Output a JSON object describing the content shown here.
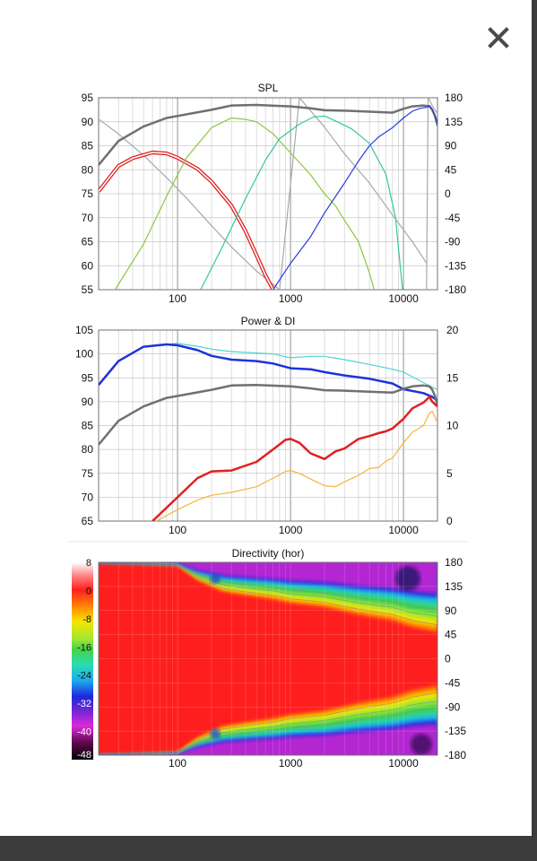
{
  "icons": {
    "close": "close-icon"
  },
  "colors": {
    "panel_bg": "#ffffff",
    "backdrop": "#3c3c3c",
    "grid": "#c8c8c8",
    "grid_major": "#909090",
    "frame": "#707070",
    "gray_curve": "#707070",
    "light_gray_curve": "#a8a8a8",
    "red": "#e02020",
    "lime": "#8cc83c",
    "teal": "#30c8a0",
    "blue_spl": "#2a3cdc",
    "blue_power": "#1e32dc",
    "cyan": "#50d2d2",
    "orange": "#f5b43c"
  },
  "chart_data": [
    {
      "type": "line",
      "title": "SPL",
      "xscale": "log",
      "xlim": [
        20,
        20000
      ],
      "x_ticks": [
        "100",
        "1000",
        "10000"
      ],
      "y_left_ticks": [
        "95",
        "90",
        "85",
        "80",
        "75",
        "70",
        "65",
        "60",
        "55"
      ],
      "y_right_ticks": [
        "180",
        "135",
        "90",
        "45",
        "0",
        "-45",
        "-90",
        "-135",
        "-180"
      ],
      "ylim": [
        55,
        95
      ],
      "y2lim": [
        -180,
        180
      ],
      "series": [
        {
          "color": "#a8a8a8",
          "axis": "right",
          "width": 1.2,
          "x": [
            20,
            30,
            50,
            80,
            120,
            200,
            300,
            500,
            800,
            1200,
            2000,
            3000,
            5000,
            8000,
            12000,
            16000
          ],
          "y": [
            140,
            112,
            72,
            30,
            -8,
            -60,
            -100,
            -145,
            -180,
            180,
            125,
            75,
            20,
            -40,
            -90,
            -130
          ]
        },
        {
          "color": "#a8a8a8",
          "axis": "right",
          "width": 1.2,
          "x": [
            16000,
            16500,
            17000,
            18000,
            20000
          ],
          "y": [
            -180,
            180,
            176,
            165,
            150
          ]
        },
        {
          "color": "#707070",
          "axis": "left",
          "width": 2.5,
          "x": [
            20,
            30,
            50,
            80,
            100,
            200,
            300,
            500,
            800,
            1000,
            1500,
            2000,
            3000,
            5000,
            8000,
            10000,
            12000,
            15000,
            17000,
            18000,
            19000,
            20000
          ],
          "y": [
            81,
            86,
            89,
            90.8,
            91.2,
            92.5,
            93.4,
            93.5,
            93.3,
            93.2,
            92.8,
            92.4,
            92.3,
            92.1,
            91.9,
            92.7,
            93.2,
            93.4,
            93.2,
            92.5,
            91.2,
            89.2
          ]
        },
        {
          "color": "#e02020",
          "axis": "left",
          "width": 1.2,
          "double": true,
          "x": [
            20,
            30,
            40,
            60,
            80,
            100,
            150,
            200,
            300,
            400,
            500,
            600,
            700
          ],
          "y": [
            75.5,
            80.8,
            82.4,
            83.6,
            83.4,
            82.5,
            80.2,
            77.5,
            72.5,
            67.2,
            62.2,
            58,
            55
          ]
        },
        {
          "color": "#8cc83c",
          "axis": "left",
          "width": 1.2,
          "x": [
            28,
            50,
            80,
            120,
            200,
            300,
            400,
            500,
            700,
            1000,
            1500,
            2000,
            2500,
            3000,
            4000,
            5000,
            5500
          ],
          "y": [
            55,
            64.5,
            74.5,
            82.5,
            88.8,
            90.8,
            90.5,
            90,
            87.5,
            83.5,
            79,
            75,
            72.5,
            69.5,
            65,
            58.5,
            55
          ]
        },
        {
          "color": "#30c8a0",
          "axis": "left",
          "width": 1.2,
          "x": [
            160,
            250,
            400,
            600,
            800,
            1200,
            1600,
            2000,
            2600,
            3500,
            5000,
            7000,
            8500,
            9800
          ],
          "y": [
            55,
            64,
            74,
            82,
            86.5,
            89.5,
            91,
            91.2,
            90,
            88.5,
            85.5,
            79,
            70,
            55
          ]
        },
        {
          "color": "#2a3cdc",
          "axis": "left",
          "width": 1.2,
          "x": [
            700,
            1000,
            1500,
            2000,
            3000,
            4000,
            5000,
            6000,
            8000,
            10000,
            12000,
            14000,
            16000,
            17000,
            18000,
            20000
          ],
          "y": [
            55,
            60.5,
            66,
            71,
            77.2,
            81.8,
            85,
            86.8,
            88.8,
            90.8,
            92.2,
            92.8,
            93,
            93.4,
            92.5,
            89.8
          ]
        }
      ]
    },
    {
      "type": "line",
      "title": "Power & DI",
      "xscale": "log",
      "xlim": [
        20,
        20000
      ],
      "x_ticks": [
        "100",
        "1000",
        "10000"
      ],
      "y_left_ticks": [
        "105",
        "100",
        "95",
        "90",
        "85",
        "80",
        "75",
        "70",
        "65"
      ],
      "y_right_ticks": [
        "20",
        "15",
        "10",
        "5",
        "0"
      ],
      "ylim": [
        65,
        105
      ],
      "y2lim": [
        0,
        20
      ],
      "series": [
        {
          "color": "#50d2d2",
          "axis": "left",
          "width": 1.2,
          "x": [
            20,
            30,
            50,
            80,
            100,
            150,
            200,
            300,
            500,
            700,
            1000,
            1500,
            2000,
            3000,
            5000,
            8000,
            10000,
            15000,
            20000
          ],
          "y": [
            93.5,
            98.5,
            101.5,
            102,
            102.2,
            101.6,
            101,
            100.5,
            100.2,
            100,
            99.2,
            99.5,
            99.5,
            98.8,
            97.8,
            96.8,
            96.2,
            94,
            92.5
          ]
        },
        {
          "color": "#1e32dc",
          "axis": "left",
          "width": 2.5,
          "x": [
            20,
            30,
            50,
            80,
            100,
            150,
            200,
            300,
            500,
            700,
            1000,
            1500,
            2000,
            3000,
            5000,
            8000,
            10000,
            15000,
            18000,
            20000
          ],
          "y": [
            93.5,
            98.5,
            101.5,
            102,
            101.8,
            100.8,
            99.6,
            98.8,
            98.5,
            98,
            97,
            96.8,
            96.2,
            95.5,
            94.8,
            93.8,
            92.6,
            91.8,
            91,
            90.2
          ]
        },
        {
          "color": "#707070",
          "axis": "left",
          "width": 2.5,
          "x": [
            20,
            30,
            50,
            80,
            100,
            200,
            300,
            500,
            800,
            1000,
            1500,
            2000,
            3000,
            5000,
            8000,
            10000,
            12000,
            15000,
            17000,
            18000,
            19000,
            20000
          ],
          "y": [
            81,
            86,
            89,
            90.8,
            91.2,
            92.5,
            93.4,
            93.5,
            93.3,
            93.2,
            92.8,
            92.4,
            92.3,
            92.1,
            91.9,
            92.7,
            93.2,
            93.4,
            93.2,
            92.5,
            91.2,
            89.2
          ]
        },
        {
          "color": "#f5b43c",
          "axis": "right",
          "width": 1.2,
          "x": [
            65,
            100,
            150,
            200,
            300,
            500,
            700,
            900,
            1000,
            1200,
            1500,
            2000,
            2500,
            3000,
            4000,
            5000,
            6000,
            7000,
            8000,
            10000,
            12000,
            15000,
            17000,
            18000,
            20000
          ],
          "y": [
            0,
            1.2,
            2.2,
            2.7,
            3,
            3.6,
            4.5,
            5.2,
            5.3,
            5,
            4.4,
            3.7,
            3.6,
            4.1,
            4.8,
            5.5,
            5.6,
            6.3,
            6.6,
            8.2,
            9.3,
            10,
            11.3,
            11.5,
            10.3
          ]
        },
        {
          "color": "#e02020",
          "axis": "right",
          "width": 2.5,
          "x": [
            60,
            100,
            150,
            200,
            300,
            500,
            700,
            900,
            1000,
            1200,
            1500,
            2000,
            2500,
            3000,
            4000,
            5000,
            6000,
            7000,
            8000,
            10000,
            12000,
            15000,
            17000,
            18000,
            20000
          ],
          "y": [
            0,
            2.5,
            4.5,
            5.2,
            5.3,
            6.2,
            7.5,
            8.5,
            8.6,
            8.2,
            7.1,
            6.5,
            7.3,
            7.6,
            8.6,
            8.9,
            9.2,
            9.4,
            9.7,
            10.7,
            11.8,
            12.4,
            13,
            12.5,
            12
          ]
        }
      ]
    },
    {
      "type": "heatmap",
      "title": "Directivity (hor)",
      "xscale": "log",
      "xlim": [
        20,
        20000
      ],
      "x_ticks": [
        "100",
        "1000",
        "10000"
      ],
      "y_right_ticks": [
        "180",
        "135",
        "90",
        "45",
        "0",
        "-45",
        "-90",
        "-135",
        "-180"
      ],
      "ylim": [
        -180,
        180
      ],
      "colorbar_ticks": [
        "8",
        "0",
        "-8",
        "-16",
        "-24",
        "-32",
        "-40",
        "-48"
      ],
      "colorbar_range": [
        -48,
        8
      ]
    }
  ]
}
